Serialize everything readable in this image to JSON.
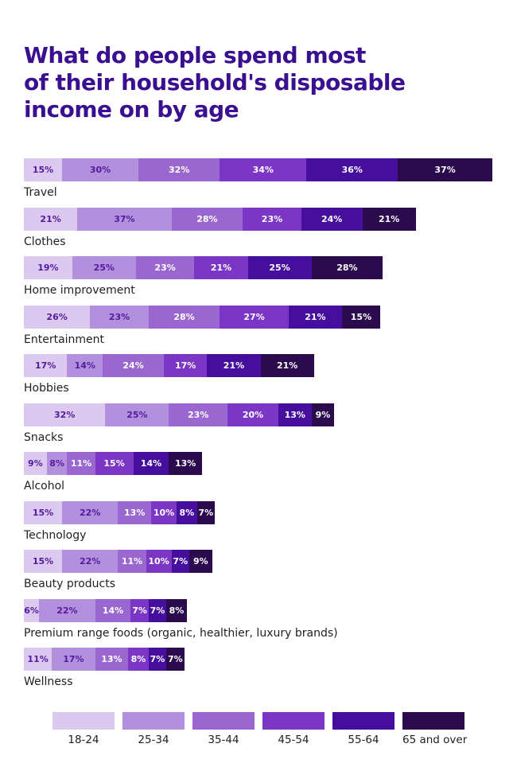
{
  "title": "What do people spend most\nof their household's disposable\nincome on by age",
  "title_color": "#3a1090",
  "chart_data": {
    "type": "bar",
    "variant": "horizontal-stacked",
    "unit": "%",
    "grid": false,
    "legend_position": "bottom",
    "categories": [
      "Travel",
      "Clothes",
      "Home improvement",
      "Entertainment",
      "Hobbies",
      "Snacks",
      "Alcohol",
      "Technology",
      "Beauty products",
      "Premium range foods (organic, healthier, luxury brands)",
      "Wellness"
    ],
    "series": [
      {
        "name": "18-24",
        "color": "#dbc9ef",
        "label_color": "#551a9e",
        "values": [
          15,
          21,
          19,
          26,
          17,
          32,
          9,
          15,
          15,
          6,
          11
        ]
      },
      {
        "name": "25-34",
        "color": "#b290dd",
        "label_color": "#551a9e",
        "values": [
          30,
          37,
          25,
          23,
          14,
          25,
          8,
          22,
          22,
          22,
          17
        ]
      },
      {
        "name": "35-44",
        "color": "#9967cf",
        "label_color": "#ffffff",
        "values": [
          32,
          28,
          23,
          28,
          24,
          23,
          11,
          13,
          11,
          14,
          13
        ]
      },
      {
        "name": "45-54",
        "color": "#7c36c5",
        "label_color": "#ffffff",
        "values": [
          34,
          23,
          21,
          27,
          17,
          20,
          15,
          10,
          10,
          7,
          8
        ]
      },
      {
        "name": "55-64",
        "color": "#450e9c",
        "label_color": "#ffffff",
        "values": [
          36,
          24,
          25,
          21,
          21,
          13,
          14,
          8,
          7,
          7,
          7
        ]
      },
      {
        "name": "65 and over",
        "color": "#2b0a4e",
        "label_color": "#ffffff",
        "values": [
          37,
          21,
          28,
          15,
          21,
          9,
          13,
          7,
          9,
          8,
          7
        ]
      }
    ]
  }
}
